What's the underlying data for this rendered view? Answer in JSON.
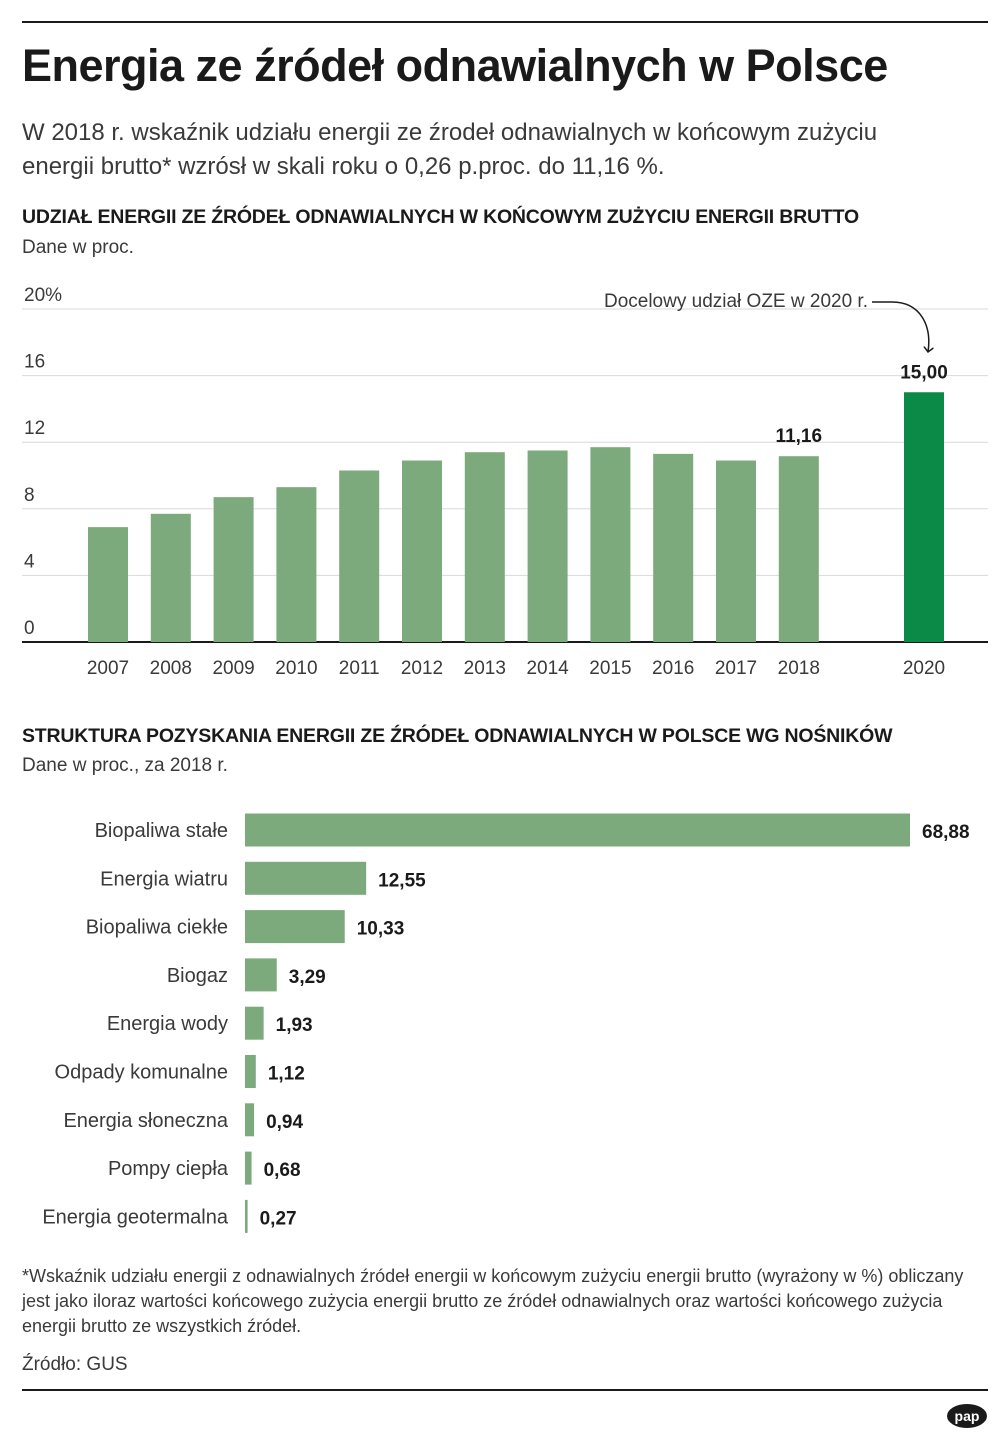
{
  "header": {
    "title": "Energia ze źródeł odnawialnych w Polsce",
    "subtitle": "W 2018 r. wskaźnik udziału energii ze źrodeł odnawialnych w końcowym zużyciu energii brutto* wzrósł w skali roku o 0,26 p.proc. do 11,16 %."
  },
  "chart_data": [
    {
      "type": "bar",
      "title": "UDZIAŁ ENERGII ZE ŹRÓDEŁ ODNAWIALNYCH W KOŃCOWYM ZUŻYCIU ENERGII BRUTTO",
      "subtitle": "Dane w proc.",
      "categories": [
        "2007",
        "2008",
        "2009",
        "2010",
        "2011",
        "2012",
        "2013",
        "2014",
        "2015",
        "2016",
        "2017",
        "2018",
        "2020"
      ],
      "values": [
        6.9,
        7.7,
        8.7,
        9.3,
        10.3,
        10.9,
        11.4,
        11.5,
        11.7,
        11.3,
        10.9,
        11.16,
        15.0
      ],
      "data_labels": {
        "2018": "11,16",
        "2020": "15,00"
      },
      "yticks": [
        "0",
        "4",
        "8",
        "12",
        "16",
        "20%"
      ],
      "ylim": [
        0,
        20
      ],
      "annotation": "Docelowy udział OZE w 2020 r.",
      "colors": {
        "bar": "#7daa7d",
        "target": "#0a8a46",
        "grid": "#d9d9d9",
        "axis": "#1a1a1a"
      }
    },
    {
      "type": "bar",
      "orientation": "horizontal",
      "title": "STRUKTURA POZYSKANIA ENERGII ZE ŹRÓDEŁ ODNAWIALNYCH W POLSCE WG NOŚNIKÓW",
      "subtitle": "Dane w proc., za 2018 r.",
      "categories": [
        "Biopaliwa stałe",
        "Energia wiatru",
        "Biopaliwa ciekłe",
        "Biogaz",
        "Energia wody",
        "Odpady komunalne",
        "Energia słoneczna",
        "Pompy ciepła",
        "Energia geotermalna"
      ],
      "values": [
        68.88,
        12.55,
        10.33,
        3.29,
        1.93,
        1.12,
        0.94,
        0.68,
        0.27
      ],
      "value_labels": [
        "68,88",
        "12,55",
        "10,33",
        "3,29",
        "1,93",
        "1,12",
        "0,94",
        "0,68",
        "0,27"
      ],
      "colors": {
        "bar": "#7daa7d"
      }
    }
  ],
  "footnote": "*Wskaźnik udziału energii z odnawialnych źródeł energii w końcowym zużyciu energii brutto (wyrażony w %) obliczany jest jako iloraz wartości końcowego zużycia energii brutto ze źródeł odnawialnych oraz wartości końcowego zużycia energii brutto ze wszystkich źródeł.",
  "source": "Źródło: GUS",
  "logo_text": "pap"
}
